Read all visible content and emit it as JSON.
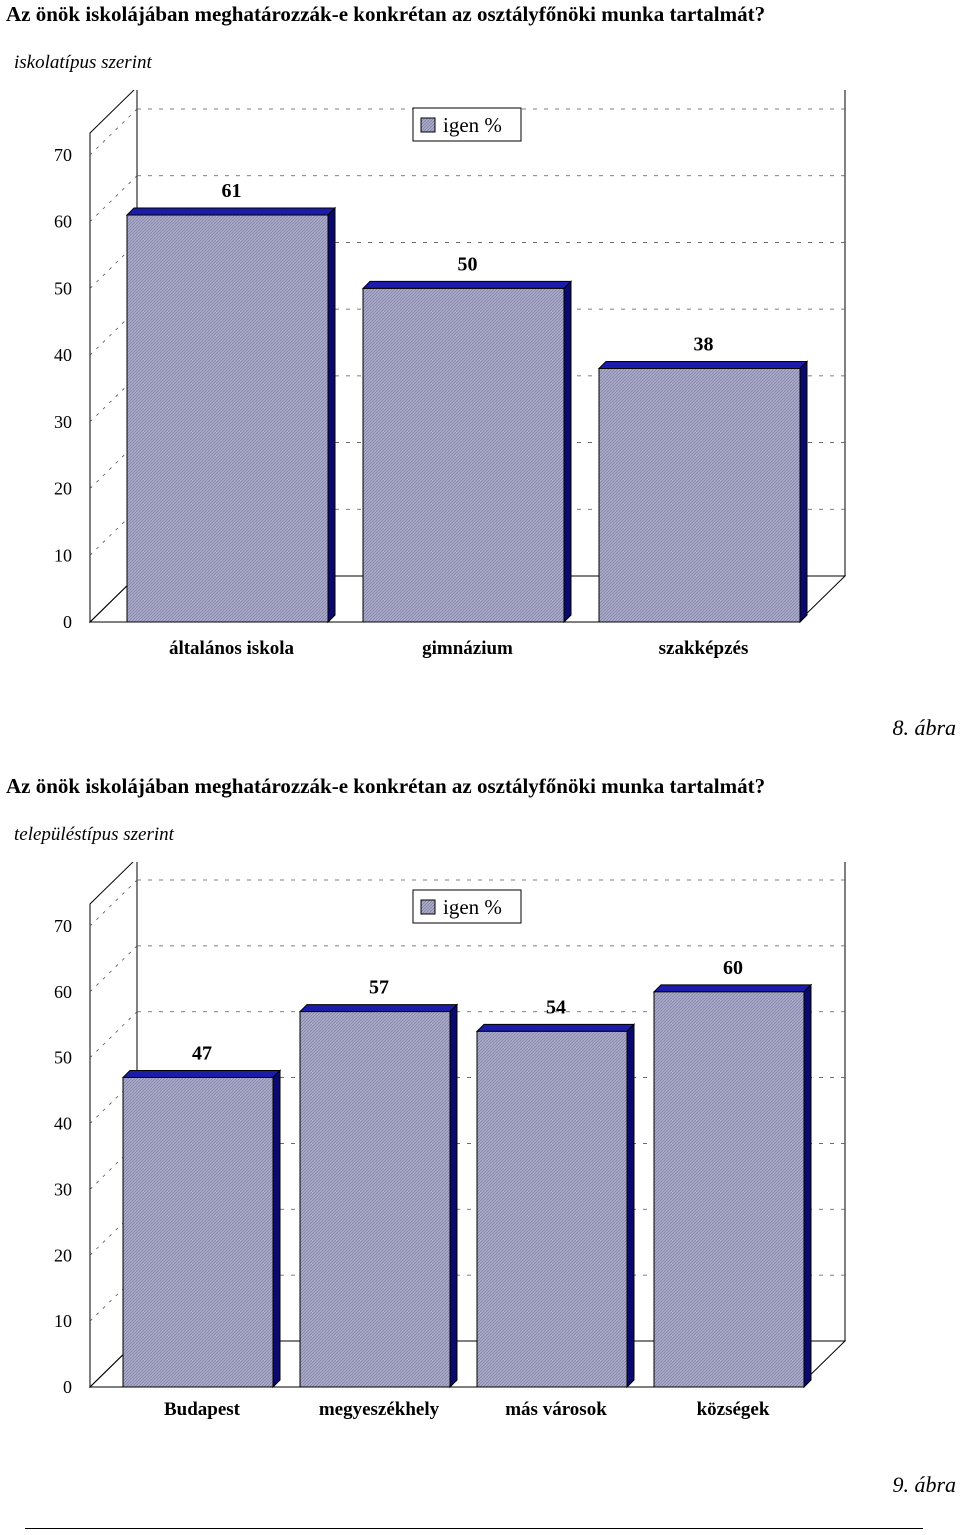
{
  "figures": [
    {
      "heading": "Az önök iskolájában meghatározzák-e konkrétan az osztályfőnöki munka tartalmát?",
      "subheading": "iskolatípus szerint",
      "caption": "8. ábra"
    },
    {
      "heading": "Az önök iskolájában meghatározzák-e konkrétan az osztályfőnöki munka tartalmát?",
      "subheading": "településtípus szerint",
      "caption": "9. ábra"
    }
  ],
  "chart_data": [
    {
      "type": "bar",
      "title": "Az önök iskolájában meghatározzák-e konkrétan az osztályfőnöki munka tartalmát?",
      "subtitle": "iskolatípus szerint",
      "categories": [
        "általános iskola",
        "gimnázium",
        "szakképzés"
      ],
      "series": [
        {
          "name": "igen %",
          "values": [
            61,
            50,
            38
          ]
        }
      ],
      "data_labels": [
        "61",
        "50",
        "38"
      ],
      "ylim": [
        0,
        70
      ],
      "yticks": [
        "0",
        "10",
        "20",
        "30",
        "40",
        "50",
        "60",
        "70"
      ],
      "grid": true,
      "legend": "top-center",
      "colors": {
        "bar_face": "#a8a8c8",
        "bar_side": "#0a0a6e",
        "bar_top": "#1c1caa"
      }
    },
    {
      "type": "bar",
      "title": "Az önök iskolájában meghatározzák-e konkrétan az osztályfőnöki munka tartalmát?",
      "subtitle": "településtípus szerint",
      "categories": [
        "Budapest",
        "megyeszékhely",
        "más városok",
        "községek"
      ],
      "series": [
        {
          "name": "igen %",
          "values": [
            47,
            57,
            54,
            60
          ]
        }
      ],
      "data_labels": [
        "47",
        "57",
        "54",
        "60"
      ],
      "ylim": [
        0,
        70
      ],
      "yticks": [
        "0",
        "10",
        "20",
        "30",
        "40",
        "50",
        "60",
        "70"
      ],
      "grid": true,
      "legend": "top-center",
      "colors": {
        "bar_face": "#a8a8c8",
        "bar_side": "#0a0a6e",
        "bar_top": "#1c1caa"
      }
    }
  ]
}
